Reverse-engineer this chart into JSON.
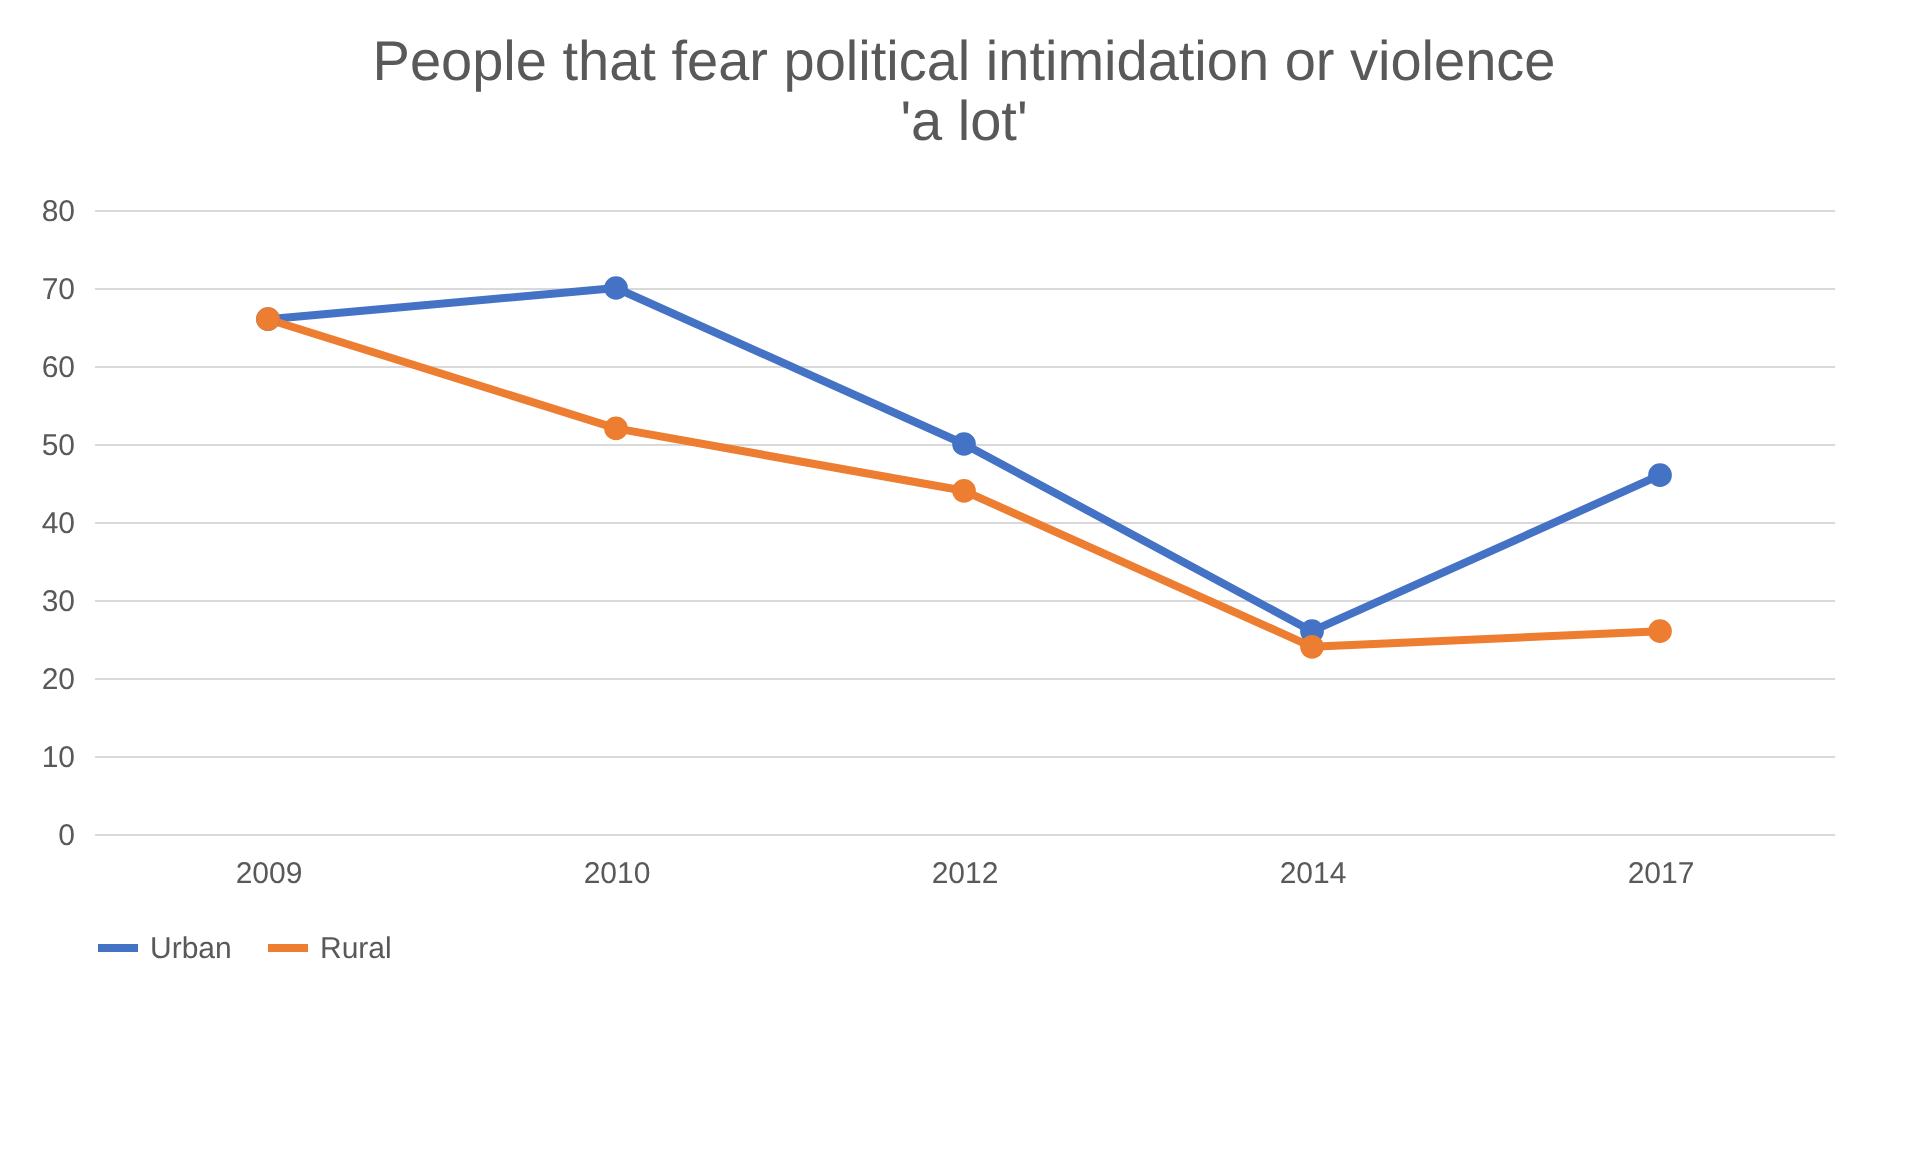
{
  "chart_data": {
    "type": "line",
    "title": [
      "People that fear political intimidation or violence",
      "'a lot'"
    ],
    "categories": [
      "2009",
      "2010",
      "2012",
      "2014",
      "2017"
    ],
    "series": [
      {
        "name": "Urban",
        "color": "#4472c4",
        "values": [
          66,
          70,
          50,
          26,
          46
        ]
      },
      {
        "name": "Rural",
        "color": "#ed7d31",
        "values": [
          66,
          52,
          44,
          24,
          26
        ]
      }
    ],
    "ylim": [
      0,
      80
    ],
    "yticks": [
      0,
      10,
      20,
      30,
      40,
      50,
      60,
      70,
      80
    ],
    "grid": "y",
    "legend": "bottom",
    "marker": "circle",
    "line_style": "solid"
  }
}
